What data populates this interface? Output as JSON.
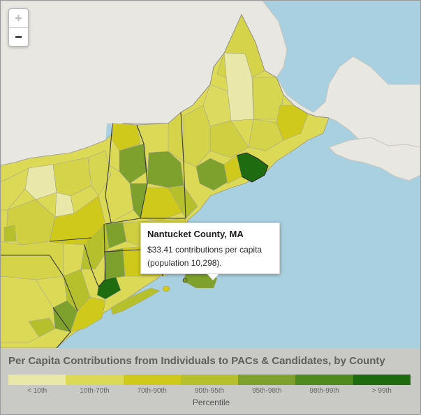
{
  "map": {
    "zoom_in_label": "+",
    "zoom_out_label": "−",
    "colors": {
      "water": "#a9d0e1",
      "foreign_land": "#e9e7e2",
      "border": "#9c9c8f",
      "state_border": "#3a3a38",
      "highlight": "#1f6b0f"
    }
  },
  "tooltip": {
    "title": "Nantucket County, MA",
    "line1": "$33.41 contributions per capita",
    "line2": "(population 10,298)."
  },
  "legend": {
    "title": "Per Capita Contributions from Individuals to PACs & Candidates, by County",
    "axis_label": "Percentile",
    "bins": [
      {
        "label": "< 10th",
        "color": "#e9e8a8"
      },
      {
        "label": "10th-70th",
        "color": "#dbd955"
      },
      {
        "label": "70th-90th",
        "color": "#cfc91b"
      },
      {
        "label": "90th-95th",
        "color": "#b6c02c"
      },
      {
        "label": "95th-98th",
        "color": "#7ea02c"
      },
      {
        "label": "98th-99th",
        "color": "#4f8a1e"
      },
      {
        "label": "> 99th",
        "color": "#1f6b0f"
      }
    ]
  }
}
